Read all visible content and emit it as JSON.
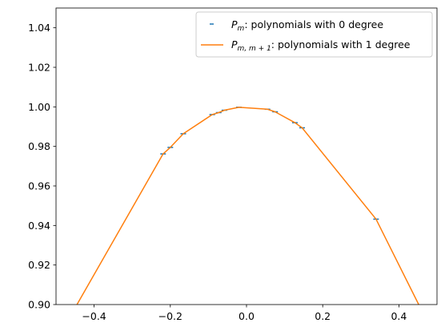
{
  "chart_data": {
    "type": "line",
    "xlim": [
      -0.5,
      0.5
    ],
    "ylim": [
      0.9,
      1.05
    ],
    "x_ticks": [
      -0.4,
      -0.2,
      0.0,
      0.2,
      0.4
    ],
    "x_tick_labels": [
      "−0.4",
      "−0.2",
      "0.0",
      "0.2",
      "0.4"
    ],
    "y_ticks": [
      0.9,
      0.92,
      0.94,
      0.96,
      0.98,
      1.0,
      1.02,
      1.04
    ],
    "y_tick_labels": [
      "0.90",
      "0.92",
      "0.94",
      "0.96",
      "0.98",
      "1.00",
      "1.02",
      "1.04"
    ],
    "grid": false,
    "legend_position": "top-right",
    "series": [
      {
        "name": "P_m: polynomials with 0 degree",
        "legend_symbol": "P",
        "legend_subscript": "m",
        "legend_suffix": ": polynomials with 0 degree",
        "kind": "piecewise-constant",
        "color": "#1f77b4",
        "segments": [
          {
            "x": -0.219,
            "y": 0.9762
          },
          {
            "x": -0.2,
            "y": 0.9795
          },
          {
            "x": -0.166,
            "y": 0.9864
          },
          {
            "x": -0.09,
            "y": 0.9961
          },
          {
            "x": -0.073,
            "y": 0.9971
          },
          {
            "x": -0.058,
            "y": 0.9983
          },
          {
            "x": -0.02,
            "y": 0.9998
          },
          {
            "x": 0.055,
            "y": 0.9988
          },
          {
            "x": 0.075,
            "y": 0.9975
          },
          {
            "x": 0.127,
            "y": 0.992
          },
          {
            "x": 0.146,
            "y": 0.9894
          },
          {
            "x": 0.34,
            "y": 0.9432
          }
        ]
      },
      {
        "name": "P_{m,m+1}: polynomials with 1 degree",
        "legend_symbol": "P",
        "legend_subscript": "m, m + 1",
        "legend_suffix": ": polynomials with 1 degree",
        "kind": "piecewise-linear",
        "color": "#ff7f0e",
        "x": [
          -0.445,
          -0.219,
          -0.2,
          -0.166,
          -0.09,
          -0.073,
          -0.058,
          -0.02,
          0.055,
          0.075,
          0.127,
          0.146,
          0.34,
          0.452
        ],
        "y": [
          0.9,
          0.9762,
          0.9795,
          0.9864,
          0.9961,
          0.9971,
          0.9983,
          0.9998,
          0.9988,
          0.9975,
          0.992,
          0.9894,
          0.9432,
          0.9
        ]
      }
    ]
  }
}
